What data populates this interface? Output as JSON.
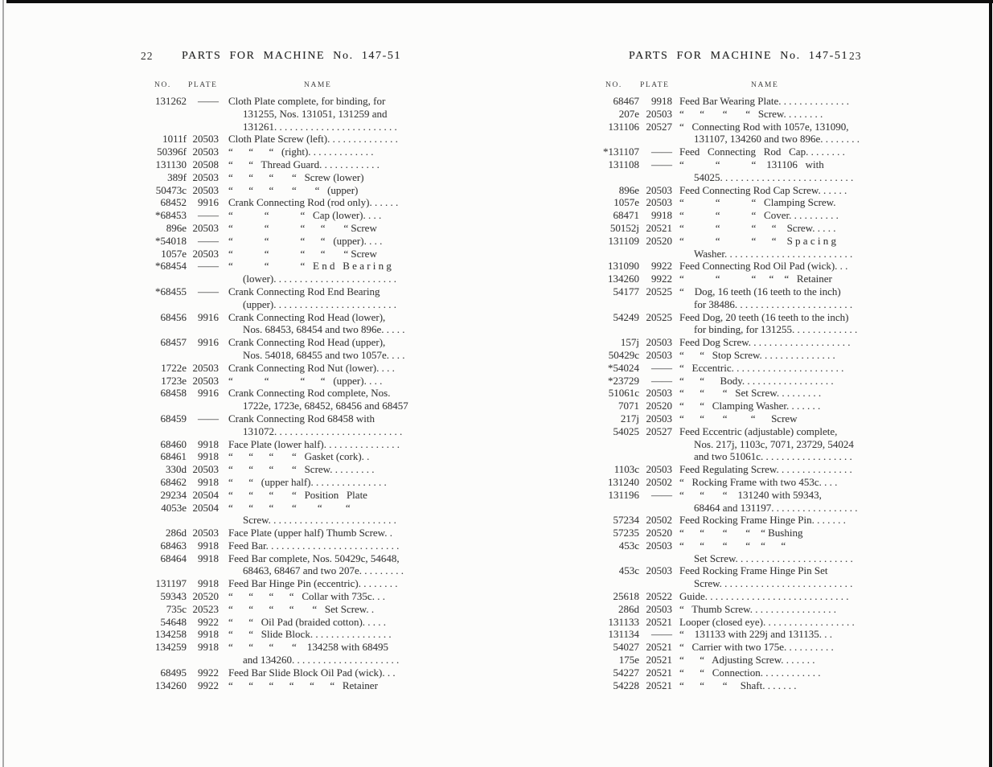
{
  "left_page": {
    "page_number": "22",
    "header": "PARTS FOR MACHINE No. 147-51",
    "columns": {
      "no": "NO.",
      "plate": "PLATE",
      "name": "NAME"
    },
    "rows": [
      {
        "no": "131262",
        "plate": "——",
        "name": "Cloth Plate complete, for binding, for\n131255, Nos. 131051, 131259 and\n131261. . . . . . . . . . . . . . . . . . . . . . . ."
      },
      {
        "no": "1011f",
        "plate": "20503",
        "name": "Cloth Plate Screw (left). . . . . . . . . . . . . ."
      },
      {
        "no": "50396f",
        "plate": "20503",
        "name": "“      “      “   (right). . . . . . . . . . . . ."
      },
      {
        "no": "131130",
        "plate": "20508",
        "name": "“      “   Thread Guard. . . . . . . . . . . ."
      },
      {
        "no": "389f",
        "plate": "20503",
        "name": "“      “      “       “   Screw (lower)"
      },
      {
        "no": "50473c",
        "plate": "20503",
        "name": "“      “      “       “       “   (upper)"
      },
      {
        "no": "68452",
        "plate": "9916",
        "name": "Crank Connecting Rod (rod only). . . . . ."
      },
      {
        "no": "*68453",
        "plate": "——",
        "name": "“            “            “   Cap (lower). . . ."
      },
      {
        "no": "896e",
        "plate": "20503",
        "name": "“            “            “      “       “ Screw"
      },
      {
        "no": "*54018",
        "plate": "——",
        "name": "“            “            “      “   (upper). . . ."
      },
      {
        "no": "1057e",
        "plate": "20503",
        "name": "“            “            “      “       “ Screw"
      },
      {
        "no": "*68454",
        "plate": "——",
        "name": "“            “            “   E n d   B e a r i n g\n(lower). . . . . . . . . . . . . . . . . . . . . . . ."
      },
      {
        "no": "*68455",
        "plate": "——",
        "name": "Crank Connecting Rod End Bearing\n(upper). . . . . . . . . . . . . . . . . . . . . . . ."
      },
      {
        "no": "68456",
        "plate": "9916",
        "name": "Crank Connecting Rod Head (lower),\nNos. 68453, 68454 and two 896e. . . . ."
      },
      {
        "no": "68457",
        "plate": "9916",
        "name": "Crank Connecting Rod Head (upper),\nNos. 54018, 68455 and two 1057e. . . ."
      },
      {
        "no": "1722e",
        "plate": "20503",
        "name": "Crank Connecting Rod Nut (lower). . . ."
      },
      {
        "no": "1723e",
        "plate": "20503",
        "name": "“            “            “      “   (upper). . . ."
      },
      {
        "no": "68458",
        "plate": "9916",
        "name": "Crank Connecting Rod complete, Nos.\n1722e, 1723e, 68452, 68456 and 68457"
      },
      {
        "no": "68459",
        "plate": "——",
        "name": "Crank Connecting Rod 68458 with\n131072. . . . . . . . . . . . . . . . . . . . . . . . ."
      },
      {
        "no": "68460",
        "plate": "9918",
        "name": "Face Plate (lower half). . . . . . . . . . . . . . ."
      },
      {
        "no": "68461",
        "plate": "9918",
        "name": "“      “      “       “   Gasket (cork). ."
      },
      {
        "no": "330d",
        "plate": "20503",
        "name": "“      “      “       “   Screw. . . . . . . . ."
      },
      {
        "no": "68462",
        "plate": "9918",
        "name": "“      “   (upper half). . . . . . . . . . . . . . ."
      },
      {
        "no": "29234",
        "plate": "20504",
        "name": "“      “      “       “   Position   Plate"
      },
      {
        "no": "4053e",
        "plate": "20504",
        "name": "“      “      “       “        “         “\nScrew. . . . . . . . . . . . . . . . . . . . . . . . ."
      },
      {
        "no": "286d",
        "plate": "20503",
        "name": "Face Plate (upper half) Thumb Screw. ."
      },
      {
        "no": "68463",
        "plate": "9918",
        "name": "Feed Bar. . . . . . . . . . . . . . . . . . . . . . . . . ."
      },
      {
        "no": "68464",
        "plate": "9918",
        "name": "Feed Bar complete, Nos. 50429c, 54648,\n68463, 68467 and two 207e. . . . . . . . ."
      },
      {
        "no": "131197",
        "plate": "9918",
        "name": "Feed Bar Hinge Pin (eccentric). . . . . . . ."
      },
      {
        "no": "59343",
        "plate": "20520",
        "name": "“      “      “      “   Collar with 735c. . ."
      },
      {
        "no": "735c",
        "plate": "20523",
        "name": "“      “      “      “       “   Set Screw. ."
      },
      {
        "no": "54648",
        "plate": "9922",
        "name": "“      “   Oil Pad (braided cotton). . . . ."
      },
      {
        "no": "134258",
        "plate": "9918",
        "name": "“      “   Slide Block. . . . . . . . . . . . . . . ."
      },
      {
        "no": "134259",
        "plate": "9918",
        "name": "“      “      “       “    134258 with 68495\nand 134260. . . . . . . . . . . . . . . . . . . . ."
      },
      {
        "no": "68495",
        "plate": "9922",
        "name": "Feed Bar Slide Block Oil Pad (wick). . ."
      },
      {
        "no": "134260",
        "plate": "9922",
        "name": "“      “      “      “      “      “   Retainer"
      }
    ]
  },
  "right_page": {
    "page_number": "23",
    "header": "PARTS FOR MACHINE No. 147-51",
    "columns": {
      "no": "NO.",
      "plate": "PLATE",
      "name": "NAME"
    },
    "rows": [
      {
        "no": "68467",
        "plate": "9918",
        "name": "Feed Bar Wearing Plate. . . . . . . . . . . . . ."
      },
      {
        "no": "207e",
        "plate": "20503",
        "name": "“      “       “       “   Screw. . . . . . . ."
      },
      {
        "no": "131106",
        "plate": "20527",
        "name": "“   Connecting Rod with 1057e, 131090,\n131107, 134260 and two 896e. . . . . . . ."
      },
      {
        "no": "*131107",
        "plate": "——",
        "name": "Feed   Connecting   Rod   Cap. . . . . . . ."
      },
      {
        "no": "131108",
        "plate": "——",
        "name": "“            “            “    131106   with\n54025. . . . . . . . . . . . . . . . . . . . . . . . . ."
      },
      {
        "no": "896e",
        "plate": "20503",
        "name": "Feed Connecting Rod Cap Screw. . . . . ."
      },
      {
        "no": "1057e",
        "plate": "20503",
        "name": "“            “            “   Clamping Screw."
      },
      {
        "no": "68471",
        "plate": "9918",
        "name": "“            “            “   Cover. . . . . . . . . ."
      },
      {
        "no": "50152j",
        "plate": "20521",
        "name": "“            “            “      “    Screw. . . . ."
      },
      {
        "no": "131109",
        "plate": "20520",
        "name": "“            “            “      “    S p a c i n g\nWasher. . . . . . . . . . . . . . . . . . . . . . . . ."
      },
      {
        "no": "131090",
        "plate": "9922",
        "name": "Feed Connecting Rod Oil Pad (wick). . ."
      },
      {
        "no": "134260",
        "plate": "9922",
        "name": "“            “            “     “    “   Retainer"
      },
      {
        "no": "54177",
        "plate": "20525",
        "name": "“    Dog, 16 teeth (16 teeth to the inch)\nfor 38486. . . . . . . . . . . . . . . . . . . . . . ."
      },
      {
        "no": "54249",
        "plate": "20525",
        "name": "Feed Dog, 20 teeth (16 teeth to the inch)\nfor binding, for 131255. . . . . . . . . . . . ."
      },
      {
        "no": "157j",
        "plate": "20503",
        "name": "Feed Dog Screw. . . . . . . . . . . . . . . . . . . ."
      },
      {
        "no": "50429c",
        "plate": "20503",
        "name": "“      “   Stop Screw. . . . . . . . . . . . . . ."
      },
      {
        "no": "*54024",
        "plate": "——",
        "name": "“   Eccentric. . . . . . . . . . . . . . . . . . . . . ."
      },
      {
        "no": "*23729",
        "plate": "——",
        "name": "“      “      Body. . . . . . . . . . . . . . . . . ."
      },
      {
        "no": "51061c",
        "plate": "20503",
        "name": "“      “       “   Set Screw. . . . . . . . ."
      },
      {
        "no": "7071",
        "plate": "20520",
        "name": "“      “   Clamping Washer. . . . . . ."
      },
      {
        "no": "217j",
        "plate": "20503",
        "name": "“      “       “         “      Screw"
      },
      {
        "no": "54025",
        "plate": "20527",
        "name": "Feed Eccentric (adjustable) complete,\nNos. 217j, 1103c, 7071, 23729, 54024\nand two 51061c. . . . . . . . . . . . . . . . . ."
      },
      {
        "no": "1103c",
        "plate": "20503",
        "name": "Feed Regulating Screw. . . . . . . . . . . . . . ."
      },
      {
        "no": "131240",
        "plate": "20502",
        "name": "“   Rocking Frame with two 453c. . . ."
      },
      {
        "no": "131196",
        "plate": "——",
        "name": "“      “       “    131240 with 59343,\n68464 and 131197. . . . . . . . . . . . . . . . ."
      },
      {
        "no": "57234",
        "plate": "20502",
        "name": "Feed Rocking Frame Hinge Pin. . . . . . ."
      },
      {
        "no": "57235",
        "plate": "20520",
        "name": "“      “       “       “    “ Bushing"
      },
      {
        "no": "453c",
        "plate": "20503",
        "name": "“      “       “       “    “      “\nSet Screw. . . . . . . . . . . . . . . . . . . . . . ."
      },
      {
        "no": "453c",
        "plate": "20503",
        "name": "Feed Rocking Frame Hinge Pin Set\nScrew. . . . . . . . . . . . . . . . . . . . . . . . . ."
      },
      {
        "no": "25618",
        "plate": "20522",
        "name": "Guide. . . . . . . . . . . . . . . . . . . . . . . . . . . ."
      },
      {
        "no": "286d",
        "plate": "20503",
        "name": "“   Thumb Screw. . . . . . . . . . . . . . . . ."
      },
      {
        "no": "131133",
        "plate": "20521",
        "name": "Looper (closed eye). . . . . . . . . . . . . . . . . ."
      },
      {
        "no": "131134",
        "plate": "——",
        "name": "“    131133 with 229j and 131135. . ."
      },
      {
        "no": "54027",
        "plate": "20521",
        "name": "“   Carrier with two 175e. . . . . . . . . ."
      },
      {
        "no": "175e",
        "plate": "20521",
        "name": "“      “   Adjusting Screw. . . . . . ."
      },
      {
        "no": "54227",
        "plate": "20521",
        "name": "“      “   Connection. . . . . . . . . . . ."
      },
      {
        "no": "54228",
        "plate": "20521",
        "name": "“      “       “     Shaft. . . . . . ."
      }
    ]
  }
}
